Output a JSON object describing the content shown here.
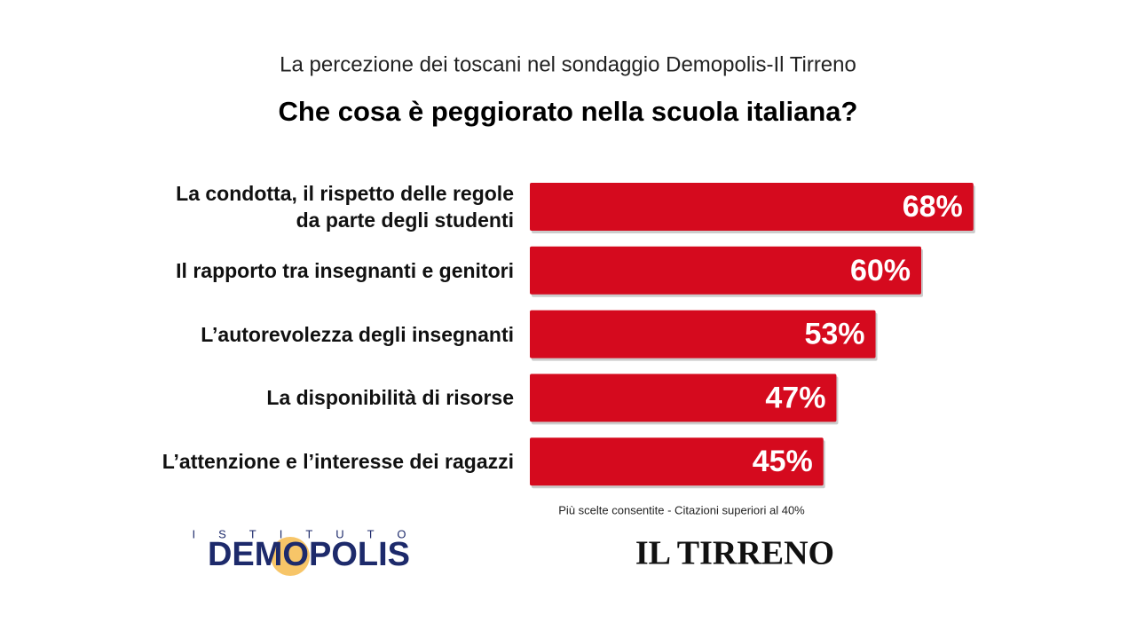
{
  "chart_data": {
    "type": "bar",
    "orientation": "horizontal",
    "subtitle": "La percezione dei toscani nel sondaggio Demopolis-Il Tirreno",
    "title": "Che cosa è peggiorato nella scuola italiana?",
    "categories": [
      "La condotta, il rispetto delle regole\nda parte degli studenti",
      "Il rapporto tra insegnanti e genitori",
      "L’autorevolezza degli insegnanti",
      "La disponibilità di risorse",
      "L’attenzione e l’interesse dei ragazzi"
    ],
    "values": [
      68,
      60,
      53,
      47,
      45
    ],
    "value_labels": [
      "68%",
      "60%",
      "53%",
      "47%",
      "45%"
    ],
    "color": "#d50a1e",
    "note": "Più scelte consentite - Citazioni superiori al 40%",
    "logos": [
      "ISTITUTO",
      "DEMOPOLIS",
      "IL TIRRENO"
    ]
  }
}
